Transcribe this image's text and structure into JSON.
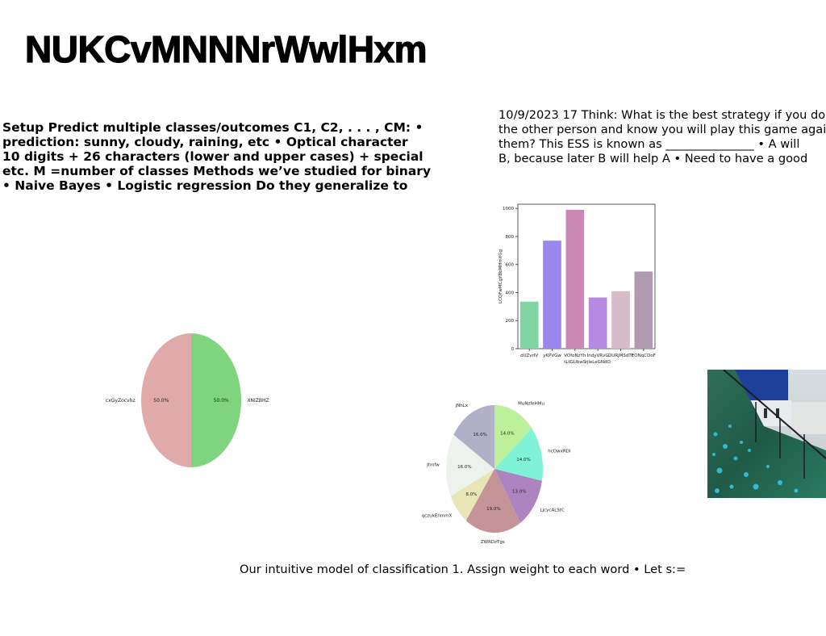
{
  "title": "NUKCvMNNNrWwlHxm",
  "setup_lines": [
    "Setup Predict multiple classes/outcomes C1, C2, . . . , CM: •",
    "prediction: sunny, cloudy, raining, etc • Optical character",
    "10 digits + 26 characters (lower and upper cases) + special",
    "etc. M =number of classes Methods we’ve studied for binary",
    "• Naive Bayes • Logistic regression Do they generalize to"
  ],
  "think_lines": [
    "10/9/2023 17 Think: What is the best strategy if you do",
    "the other person and know you will play this game again",
    "them? This ESS is known as _______________ • A will",
    "B, because later B will help A • Need to have a good"
  ],
  "footer": "Our intuitive model of classification 1. Assign weight to each word • Let s:=",
  "chart_data": [
    {
      "type": "bar",
      "categories": [
        "dUZvrIV",
        "yKPVGw",
        "VOfoNzYh",
        "IndyVRvG",
        "DURjMSdTt",
        "EONqCDoF"
      ],
      "category_labels_second_row": [
        "",
        "",
        "tLtGUbwS",
        "rjleLeGNdO",
        "",
        ""
      ],
      "values": [
        335,
        770,
        990,
        365,
        410,
        550
      ],
      "colors": [
        "#80d4a4",
        "#9b86ee",
        "#cc88b4",
        "#b68ae0",
        "#d5bcc8",
        "#b09aaf"
      ],
      "ylabel": "LCQFwMCgYBbMHmYGg",
      "ylim": [
        0,
        1030
      ],
      "yticks": [
        0,
        200,
        400,
        600,
        800,
        1000
      ]
    },
    {
      "type": "pie",
      "labels": [
        "XNIZBHZ",
        "cxGyZocvhz"
      ],
      "values": [
        50.0,
        50.0
      ],
      "pct_labels": [
        "50.0%",
        "50.0%"
      ],
      "colors": [
        "#80d47f",
        "#e0aaaa"
      ]
    },
    {
      "type": "pie",
      "labels": [
        "MuNzfeHMu",
        "hcOwxRDI",
        "LjcycALSrC",
        "ZWRDzTgs",
        "qczukEnmmX",
        "Jtmfw",
        "jNhLx"
      ],
      "values": [
        14.0,
        14.0,
        13.0,
        19.0,
        8.0,
        16.0,
        16.0
      ],
      "pct_labels": [
        "14.0%",
        "14.0%",
        "13.0%",
        "19.0%",
        "8.0%",
        "16.0%",
        "16.0%"
      ],
      "colors": [
        "#bdf09a",
        "#7ff2d8",
        "#ad84c0",
        "#c59498",
        "#e8e6b6",
        "#edf3ec",
        "#b2b0c8"
      ]
    }
  ]
}
